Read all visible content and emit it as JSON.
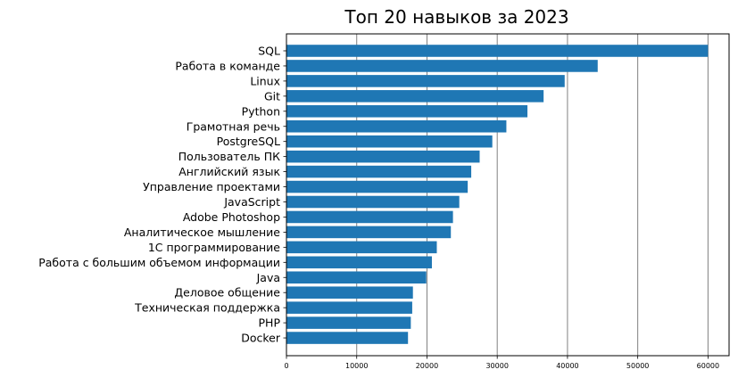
{
  "chart_data": {
    "type": "bar",
    "orientation": "horizontal",
    "title": "Топ 20 навыков за 2023",
    "xlabel": "",
    "ylabel": "",
    "xlim": [
      0,
      63000
    ],
    "x_ticks": [
      0,
      10000,
      20000,
      30000,
      40000,
      50000,
      60000
    ],
    "x_tick_labels": [
      "0",
      "10000",
      "20000",
      "30000",
      "40000",
      "50000",
      "60000"
    ],
    "grid": "vertical",
    "bar_color": "#1f77b4",
    "grid_color": "#808080",
    "categories": [
      "SQL",
      "Работа в команде",
      "Linux",
      "Git",
      "Python",
      "Грамотная речь",
      "PostgreSQL",
      "Пользователь ПК",
      "Английский язык",
      "Управление проектами",
      "JavaScript",
      "Adobe Photoshop",
      "Аналитическое мышление",
      "1С программирование",
      "Работа с большим объемом информации",
      "Java",
      "Деловое общение",
      "Техническая поддержка",
      "PHP",
      "Docker"
    ],
    "values": [
      60000,
      44300,
      39600,
      36600,
      34300,
      31300,
      29300,
      27500,
      26300,
      25800,
      24600,
      23700,
      23400,
      21400,
      20700,
      19900,
      18000,
      17900,
      17700,
      17300
    ]
  }
}
